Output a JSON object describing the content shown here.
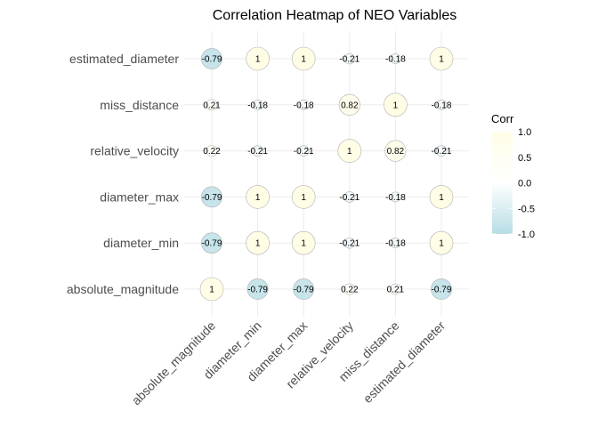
{
  "chart_data": {
    "type": "heatmap",
    "title": "Correlation Heatmap of NEO Variables",
    "x_categories": [
      "absolute_magnitude",
      "diameter_min",
      "diameter_max",
      "relative_velocity",
      "miss_distance",
      "estimated_diameter"
    ],
    "y_categories": [
      "estimated_diameter",
      "miss_distance",
      "relative_velocity",
      "diameter_max",
      "diameter_min",
      "absolute_magnitude"
    ],
    "values": [
      [
        -0.79,
        1,
        1,
        -0.21,
        -0.18,
        1
      ],
      [
        0.21,
        -0.18,
        -0.18,
        0.82,
        1,
        -0.18
      ],
      [
        0.22,
        -0.21,
        -0.21,
        1,
        0.82,
        -0.21
      ],
      [
        -0.79,
        1,
        1,
        -0.21,
        -0.18,
        1
      ],
      [
        -0.79,
        1,
        1,
        -0.21,
        -0.18,
        1
      ],
      [
        1,
        -0.79,
        -0.79,
        0.22,
        0.21,
        -0.79
      ]
    ],
    "labels": [
      [
        "-0.79",
        "1",
        "1",
        "-0.21",
        "-0.18",
        "1"
      ],
      [
        "0.21",
        "-0.18",
        "-0.18",
        "0.82",
        "1",
        "-0.18"
      ],
      [
        "0.22",
        "-0.21",
        "-0.21",
        "1",
        "0.82",
        "-0.21"
      ],
      [
        "-0.79",
        "1",
        "1",
        "-0.21",
        "-0.18",
        "1"
      ],
      [
        "-0.79",
        "1",
        "1",
        "-0.21",
        "-0.18",
        "1"
      ],
      [
        "1",
        "-0.79",
        "-0.79",
        "0.22",
        "0.21",
        "-0.79"
      ]
    ],
    "legend": {
      "title": "Corr",
      "ticks": [
        1.0,
        0.5,
        0.0,
        -0.5,
        -1.0
      ],
      "tick_labels": [
        "1.0",
        "0.5",
        "0.0",
        "-0.5",
        "-1.0"
      ],
      "range": [
        -1,
        1
      ],
      "placement": "right"
    },
    "colors": {
      "negative": "#b7dde5",
      "zero": "#ffffff",
      "positive": "#fffde6",
      "circle_stroke": "#b0b0b0"
    }
  }
}
